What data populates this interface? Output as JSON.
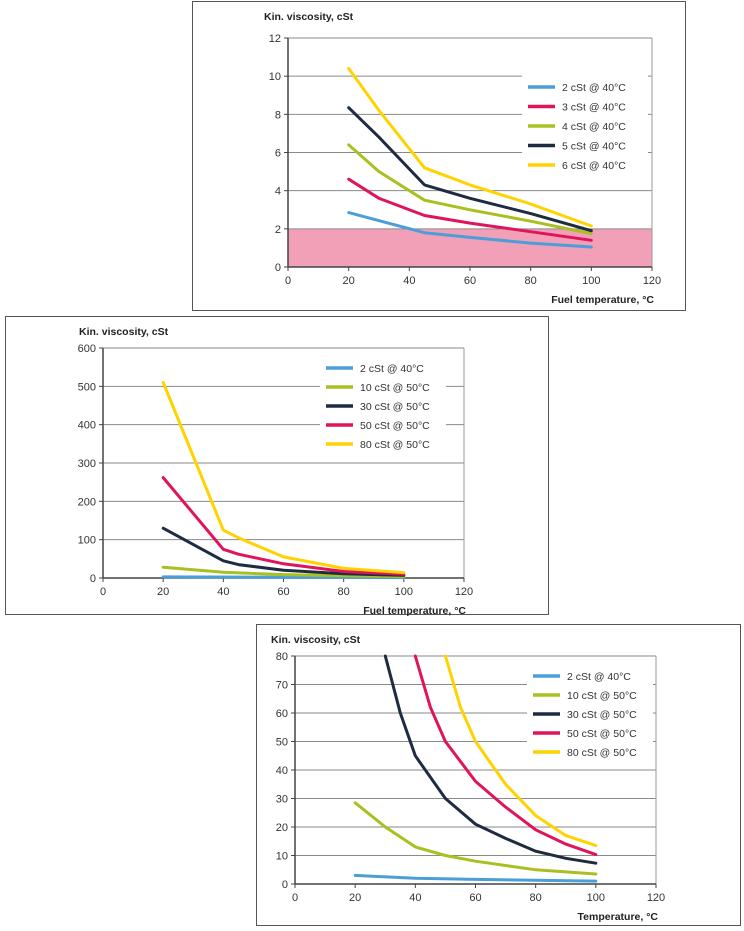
{
  "colors": {
    "blue": "#4a9fd8",
    "red": "#e0145a",
    "green": "#a8c020",
    "navy": "#1e2b40",
    "yellow": "#ffd200",
    "band": "#f2a0b8"
  },
  "chart_data": [
    {
      "type": "line",
      "title": "Kin. viscosity, cSt",
      "xlabel": "Fuel temperature, °C",
      "ylabel": "Kin. viscosity, cSt",
      "xlim": [
        0,
        120
      ],
      "ylim": [
        0,
        12
      ],
      "xticks": [
        "0",
        "20",
        "40",
        "60",
        "80",
        "100",
        "120"
      ],
      "yticks": [
        "0",
        "2",
        "4",
        "6",
        "8",
        "10",
        "12"
      ],
      "grid": true,
      "legend": "top-right",
      "shaded_band": {
        "from": 0,
        "to": 2
      },
      "series": [
        {
          "name": "2 cSt @ 40°C",
          "color": "blue",
          "x": [
            20,
            45,
            60,
            80,
            100
          ],
          "y": [
            2.85,
            1.8,
            1.55,
            1.25,
            1.05
          ]
        },
        {
          "name": "3 cSt @ 40°C",
          "color": "red",
          "x": [
            20,
            30,
            45,
            60,
            80,
            100
          ],
          "y": [
            4.6,
            3.6,
            2.7,
            2.3,
            1.85,
            1.4
          ]
        },
        {
          "name": "4 cSt @ 40°C",
          "color": "green",
          "x": [
            20,
            30,
            45,
            60,
            80,
            100
          ],
          "y": [
            6.4,
            5.0,
            3.5,
            3.0,
            2.4,
            1.75
          ]
        },
        {
          "name": "5 cSt @ 40°C",
          "color": "navy",
          "x": [
            20,
            30,
            45,
            60,
            80,
            100
          ],
          "y": [
            8.35,
            6.8,
            4.3,
            3.6,
            2.8,
            1.9
          ]
        },
        {
          "name": "6 cSt @ 40°C",
          "color": "yellow",
          "x": [
            20,
            30,
            45,
            60,
            80,
            100
          ],
          "y": [
            10.4,
            8.2,
            5.2,
            4.3,
            3.3,
            2.15
          ]
        }
      ]
    },
    {
      "type": "line",
      "title": "Kin. viscosity, cSt",
      "xlabel": "Fuel temperature, °C",
      "ylabel": "Kin. viscosity, cSt",
      "xlim": [
        0,
        120
      ],
      "ylim": [
        0,
        600
      ],
      "xticks": [
        "0",
        "20",
        "40",
        "60",
        "80",
        "100",
        "120"
      ],
      "yticks": [
        "0",
        "100",
        "200",
        "300",
        "400",
        "500",
        "600"
      ],
      "grid": true,
      "legend": "top-right",
      "series": [
        {
          "name": "2 cSt @ 40°C",
          "color": "blue",
          "x": [
            20,
            60,
            100
          ],
          "y": [
            3,
            2,
            1
          ]
        },
        {
          "name": "10 cSt @ 50°C",
          "color": "green",
          "x": [
            20,
            40,
            60,
            80,
            100
          ],
          "y": [
            28,
            15,
            9,
            6,
            4
          ]
        },
        {
          "name": "30 cSt @ 50°C",
          "color": "navy",
          "x": [
            20,
            40,
            45,
            60,
            80,
            100
          ],
          "y": [
            130,
            45,
            35,
            20,
            11,
            7
          ]
        },
        {
          "name": "50 cSt @ 50°C",
          "color": "red",
          "x": [
            20,
            40,
            45,
            60,
            80,
            100
          ],
          "y": [
            262,
            75,
            62,
            37,
            17,
            10
          ]
        },
        {
          "name": "80 cSt @ 50°C",
          "color": "yellow",
          "x": [
            20,
            40,
            45,
            60,
            80,
            100
          ],
          "y": [
            510,
            125,
            105,
            55,
            25,
            14
          ]
        }
      ]
    },
    {
      "type": "line",
      "title": "Kin. viscosity, cSt",
      "xlabel": "Temperature, °C",
      "ylabel": "Kin. viscosity, cSt",
      "xlim": [
        0,
        120
      ],
      "ylim": [
        0,
        80
      ],
      "xticks": [
        "0",
        "20",
        "40",
        "60",
        "80",
        "100",
        "120"
      ],
      "yticks": [
        "0",
        "10",
        "20",
        "30",
        "40",
        "50",
        "60",
        "70",
        "80"
      ],
      "grid": true,
      "legend": "top-right",
      "series": [
        {
          "name": "2 cSt @ 40°C",
          "color": "blue",
          "x": [
            20,
            40,
            60,
            80,
            100
          ],
          "y": [
            3,
            2,
            1.6,
            1.3,
            1
          ]
        },
        {
          "name": "10 cSt @ 50°C",
          "color": "green",
          "x": [
            20,
            30,
            40,
            50,
            60,
            80,
            100
          ],
          "y": [
            28.5,
            20,
            13,
            10,
            8,
            5,
            3.5
          ]
        },
        {
          "name": "30 cSt @ 50°C",
          "color": "navy",
          "x": [
            30,
            35,
            40,
            50,
            60,
            70,
            80,
            90,
            100
          ],
          "y": [
            80,
            60,
            45,
            30,
            21,
            16,
            11.5,
            9,
            7.3
          ]
        },
        {
          "name": "50 cSt @ 50°C",
          "color": "red",
          "x": [
            40,
            45,
            50,
            60,
            70,
            80,
            90,
            100
          ],
          "y": [
            80,
            62,
            50,
            36,
            27,
            19,
            14,
            10.3
          ]
        },
        {
          "name": "80 cSt @ 50°C",
          "color": "yellow",
          "x": [
            50,
            55,
            60,
            70,
            80,
            90,
            100
          ],
          "y": [
            80,
            62,
            50,
            35,
            24,
            17,
            13.5
          ]
        }
      ]
    }
  ]
}
